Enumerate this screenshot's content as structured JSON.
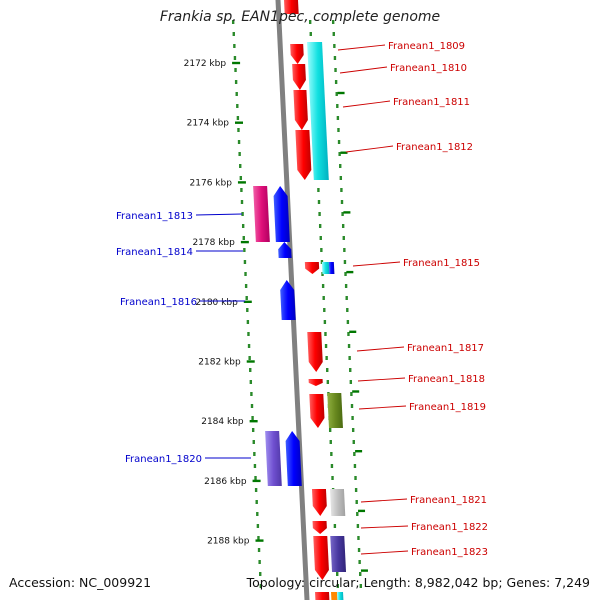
{
  "title": "Frankia sp. EAN1pec, complete genome",
  "accession": "Accession: NC_009921",
  "topology": "Topology: circular; Length: 8,982,042 bp; Genes: 7,249",
  "colors": {
    "red": "#ff0000",
    "blue": "#0000ff",
    "magenta": "#e0107a",
    "cyan": "#10e0e0",
    "violet": "#7050d0",
    "olive": "#6a8a20",
    "grey": "#b8b8b8",
    "navy": "#4838a0",
    "axis": "#808080",
    "tick": "#007700",
    "label_blue": "#0000cc",
    "label_red": "#cc0000"
  },
  "ticks": [
    "2172 kbp",
    "2174 kbp",
    "2176 kbp",
    "2178 kbp",
    "2180 kbp",
    "2182 kbp",
    "2184 kbp",
    "2186 kbp",
    "2188 kbp"
  ],
  "genes": [
    {
      "name": "Franean1_1809",
      "strand": "plus",
      "color": "red"
    },
    {
      "name": "Franean1_1810",
      "strand": "plus",
      "color": "red"
    },
    {
      "name": "Franean1_1811",
      "strand": "plus",
      "color": "red"
    },
    {
      "name": "Franean1_1812",
      "strand": "plus",
      "color": "red"
    },
    {
      "name": "Franean1_1813",
      "strand": "minus",
      "color": "blue"
    },
    {
      "name": "Franean1_1814",
      "strand": "minus",
      "color": "blue"
    },
    {
      "name": "Franean1_1815",
      "strand": "plus",
      "color": "red"
    },
    {
      "name": "Franean1_1816",
      "strand": "minus",
      "color": "blue"
    },
    {
      "name": "Franean1_1817",
      "strand": "plus",
      "color": "red"
    },
    {
      "name": "Franean1_1818",
      "strand": "plus",
      "color": "red"
    },
    {
      "name": "Franean1_1819",
      "strand": "plus",
      "color": "red"
    },
    {
      "name": "Franean1_1820",
      "strand": "minus",
      "color": "blue"
    },
    {
      "name": "Franean1_1821",
      "strand": "plus",
      "color": "red"
    },
    {
      "name": "Franean1_1822",
      "strand": "plus",
      "color": "red"
    },
    {
      "name": "Franean1_1823",
      "strand": "plus",
      "color": "red"
    }
  ]
}
